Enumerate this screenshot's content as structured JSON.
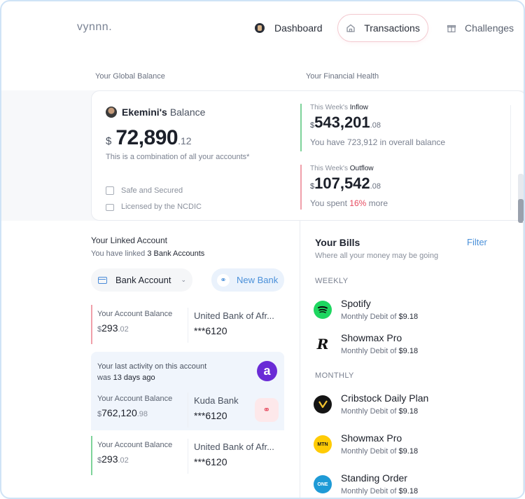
{
  "brand": "vynnn.",
  "nav": {
    "dashboard": "Dashboard",
    "transactions": "Transactions",
    "challenges": "Challenges"
  },
  "sections": {
    "global_balance": "Your Global Balance",
    "financial_health": "Your Financial Health"
  },
  "balance": {
    "owner": "Ekemini's",
    "suffix": "Balance",
    "currency": "$",
    "integer": "72,890",
    "decimal": ".12",
    "note": "This is a combination of all your accounts*",
    "safe": "Safe and Secured",
    "licensed": "Licensed by the NCDIC"
  },
  "inflow": {
    "label_prefix": "This Week's",
    "label": "Inflow",
    "currency": "$",
    "integer": "543,201",
    "decimal": ".08",
    "sub": "You have 723,912 in overall balance"
  },
  "outflow": {
    "label_prefix": "This Week's",
    "label": "Outflow",
    "currency": "$",
    "integer": "107,542",
    "decimal": ".08",
    "sub_pre": "You spent",
    "sub_pct": "16%",
    "sub_post": "more"
  },
  "linked": {
    "title": "Your Linked Account",
    "sub_pre": "You have linked",
    "sub_count": "3 Bank Accounts",
    "dropdown": "Bank Account",
    "new_bank": "New Bank",
    "accounts": [
      {
        "label": "Your Account Balance",
        "currency": "$",
        "integer": "293",
        "decimal": ".02",
        "bank": "United Bank of Afr...",
        "number": "***6120",
        "color": "#f0a0aa"
      },
      {
        "label": "Your Account Balance",
        "currency": "$",
        "integer": "762,120",
        "decimal": ".98",
        "bank": "Kuda Bank",
        "number": "***6120",
        "color": "#f0f5fc"
      },
      {
        "label": "Your Account Balance",
        "currency": "$",
        "integer": "293",
        "decimal": ".02",
        "bank": "United Bank of Afr...",
        "number": "***6120",
        "color": "#7ed39a"
      }
    ],
    "activity_pre": "Your last activity on this account",
    "activity_was": "was",
    "activity_days": "13 days ago"
  },
  "bills": {
    "title": "Your Bills",
    "filter": "Filter",
    "subtitle": "Where all your money may be going",
    "weekly": "WEEKLY",
    "monthly": "MONTHLY",
    "items": [
      {
        "name": "Spotify",
        "sub_pre": "Monthly Debit of",
        "amount": "$9.18"
      },
      {
        "name": "Showmax Pro",
        "sub_pre": "Monthly Debit of",
        "amount": "$9.18"
      },
      {
        "name": "Cribstock Daily Plan",
        "sub_pre": "Monthly Debit of",
        "amount": "$9.18"
      },
      {
        "name": "Showmax Pro",
        "sub_pre": "Monthly Debit of",
        "amount": "$9.18"
      },
      {
        "name": "Standing Order",
        "sub_pre": "Monthly Debit of",
        "amount": "$9.18"
      }
    ],
    "logos": [
      "S",
      "R",
      "C",
      "MTN",
      "ONE"
    ]
  }
}
